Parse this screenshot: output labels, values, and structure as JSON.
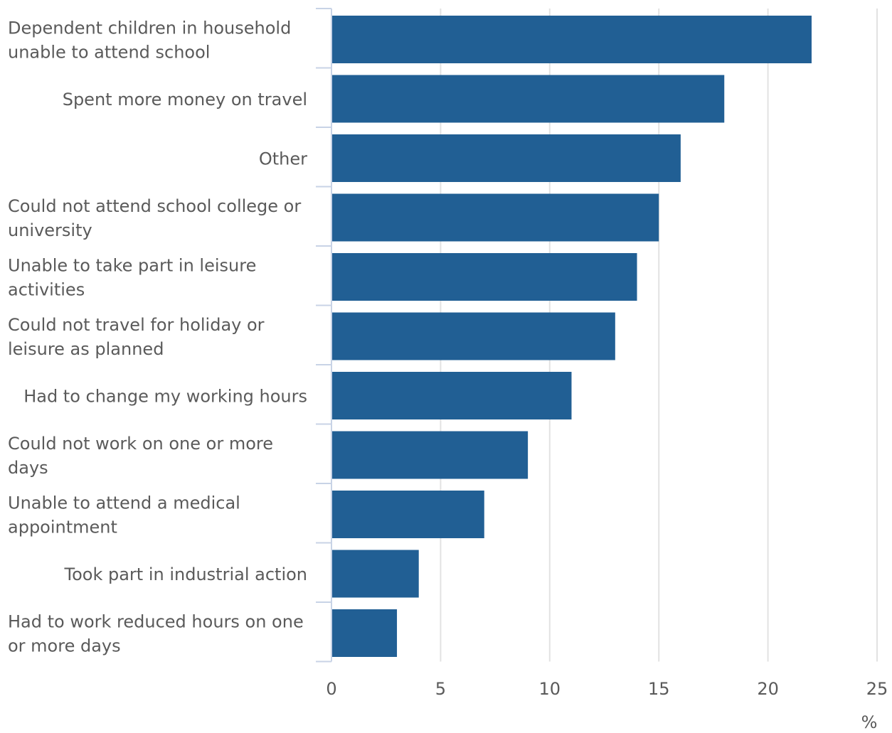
{
  "chart_data": {
    "type": "bar",
    "orientation": "horizontal",
    "categories": [
      [
        "Dependent children in household",
        "unable to attend school"
      ],
      [
        "Spent more money on travel"
      ],
      [
        "Other"
      ],
      [
        "Could not attend school college or",
        "university"
      ],
      [
        "Unable to take part in leisure",
        "activities"
      ],
      [
        "Could not travel for holiday or",
        "leisure as planned"
      ],
      [
        "Had to change my working hours"
      ],
      [
        "Could not work on one or more",
        "days"
      ],
      [
        "Unable to attend a medical",
        "appointment"
      ],
      [
        "Took part in industrial action"
      ],
      [
        "Had to work reduced hours on one",
        "or more days"
      ]
    ],
    "values": [
      22,
      18,
      16,
      15,
      14,
      13,
      11,
      9,
      7,
      4,
      3
    ],
    "xlim": [
      0,
      25
    ],
    "xticks": [
      "0",
      "5",
      "10",
      "15",
      "20",
      "25"
    ],
    "xlabel": "%",
    "grid": true,
    "colors": {
      "bar": "#215f94",
      "grid": "#e2e2e2",
      "axis": "#c8d3e6",
      "text": "#5a5a5a"
    }
  }
}
